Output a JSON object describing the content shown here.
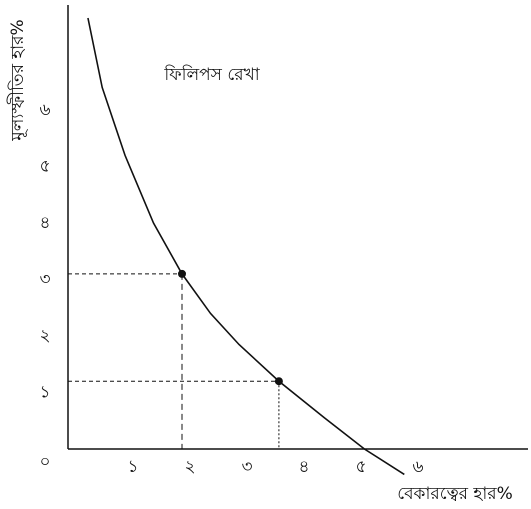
{
  "chart_data": {
    "type": "line",
    "annotation": "ফিলিপস রেখা",
    "ylabel": "মূল্যস্ফীতির হার%",
    "xlabel": "বেকারত্বের হার%",
    "xlim": [
      0,
      8.07
    ],
    "ylim": [
      0,
      7.86
    ],
    "xticks": [
      {
        "value": 1,
        "label": "১"
      },
      {
        "value": 2,
        "label": "২"
      },
      {
        "value": 3,
        "label": "৩"
      },
      {
        "value": 4,
        "label": "৪"
      },
      {
        "value": 5,
        "label": "৫"
      },
      {
        "value": 6,
        "label": "৬"
      }
    ],
    "yticks": [
      {
        "value": 0,
        "label": "০"
      },
      {
        "value": 1,
        "label": "১"
      },
      {
        "value": 2,
        "label": "২"
      },
      {
        "value": 3,
        "label": "৩"
      },
      {
        "value": 4,
        "label": "৪"
      },
      {
        "value": 5,
        "label": "৫"
      },
      {
        "value": 6,
        "label": "৬"
      }
    ],
    "series": [
      {
        "name": null,
        "color": "#111",
        "x": [
          0.35,
          0.6,
          1,
          1.5,
          2,
          2.5,
          3,
          3.7,
          4.5,
          5.2,
          5.9
        ],
        "values": [
          7.63,
          6.4,
          5.2,
          4.0,
          3.1,
          2.4,
          1.85,
          1.2,
          0.55,
          0,
          -0.45
        ]
      }
    ],
    "points": {
      "x": [
        2,
        3.7
      ],
      "values": [
        3.1,
        1.2
      ]
    }
  }
}
